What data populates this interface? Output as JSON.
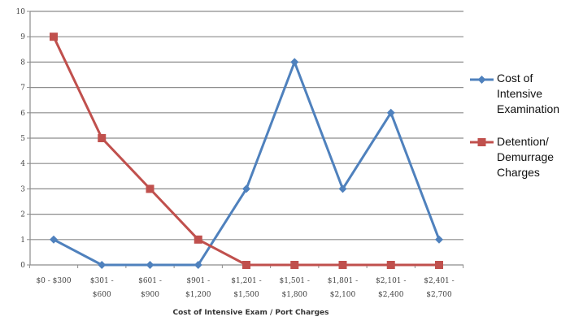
{
  "chart_data": {
    "type": "line",
    "title": "",
    "xlabel": "Cost of Intensive Exam / Port Charges",
    "ylabel": "",
    "ylim": [
      0,
      10
    ],
    "yticks": [
      "0",
      "1",
      "2",
      "3",
      "4",
      "5",
      "6",
      "7",
      "8",
      "9",
      "10"
    ],
    "grid": true,
    "legend_position": "right",
    "categories": [
      [
        "$0 - $300"
      ],
      [
        "$301 -",
        "$600"
      ],
      [
        "$601 -",
        "$900"
      ],
      [
        "$901 -",
        "$1,200"
      ],
      [
        "$1,201 -",
        "$1,500"
      ],
      [
        "$1,501 -",
        "$1,800"
      ],
      [
        "$1,801 -",
        "$2,100"
      ],
      [
        "$2,101 -",
        "$2,400"
      ],
      [
        "$2,401 -",
        "$2,700"
      ]
    ],
    "series": [
      {
        "name": [
          "Cost of",
          "Intensive",
          "Examination"
        ],
        "color": "#4f81bd",
        "marker": "diamond",
        "values": [
          1,
          0,
          0,
          0,
          3,
          8,
          3,
          6,
          1
        ]
      },
      {
        "name": [
          "Detention/",
          "Demurrage",
          "Charges"
        ],
        "color": "#c0504d",
        "marker": "square",
        "values": [
          9,
          5,
          3,
          1,
          0,
          0,
          0,
          0,
          0
        ]
      }
    ]
  }
}
